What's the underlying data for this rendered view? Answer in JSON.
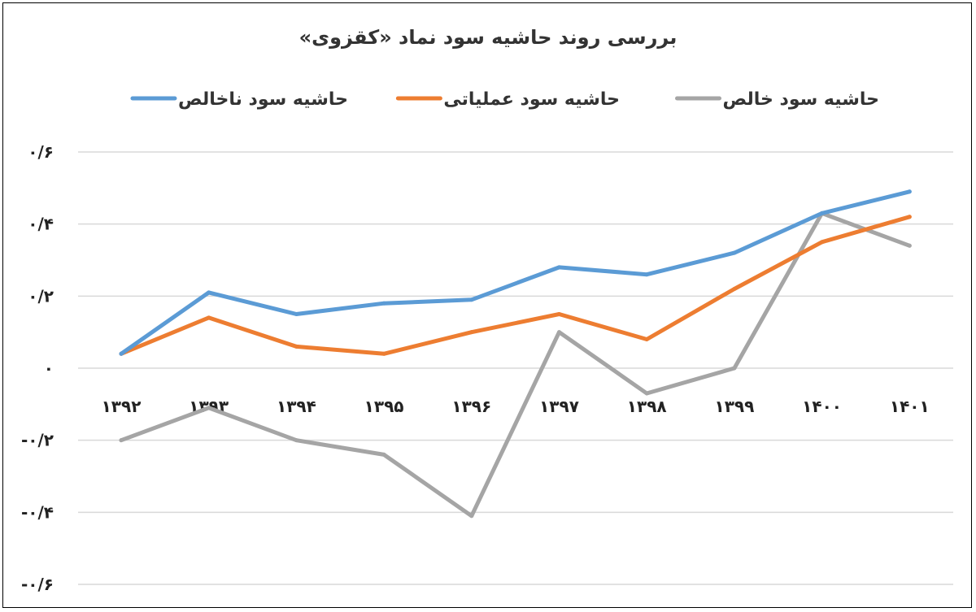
{
  "chart_data": {
    "type": "line",
    "title": "بررسی روند حاشیه سود نماد «کقزوی»",
    "categories": [
      "۱۳۹۲",
      "۱۳۹۳",
      "۱۳۹۴",
      "۱۳۹۵",
      "۱۳۹۶",
      "۱۳۹۷",
      "۱۳۹۸",
      "۱۳۹۹",
      "۱۴۰۰",
      "۱۴۰۱"
    ],
    "ylim": [
      -0.6,
      0.6
    ],
    "ytick_labels": [
      "۰/۶",
      "۰/۴",
      "۰/۲",
      "۰",
      "-۰/۲",
      "-۰/۴",
      "-۰/۶"
    ],
    "grid": true,
    "legend_position": "top",
    "series": [
      {
        "name": "حاشیه سود ناخالص",
        "color": "#5b9bd5",
        "values": [
          0.04,
          0.21,
          0.15,
          0.18,
          0.19,
          0.28,
          0.26,
          0.32,
          0.43,
          0.49
        ]
      },
      {
        "name": "حاشیه سود عملیاتی",
        "color": "#ed7d31",
        "values": [
          0.04,
          0.14,
          0.06,
          0.04,
          0.1,
          0.15,
          0.08,
          0.22,
          0.35,
          0.42
        ]
      },
      {
        "name": "حاشیه سود خالص",
        "color": "#a5a5a5",
        "values": [
          -0.2,
          -0.11,
          -0.2,
          -0.24,
          -0.41,
          0.1,
          -0.07,
          0.0,
          0.43,
          0.34
        ]
      }
    ]
  }
}
